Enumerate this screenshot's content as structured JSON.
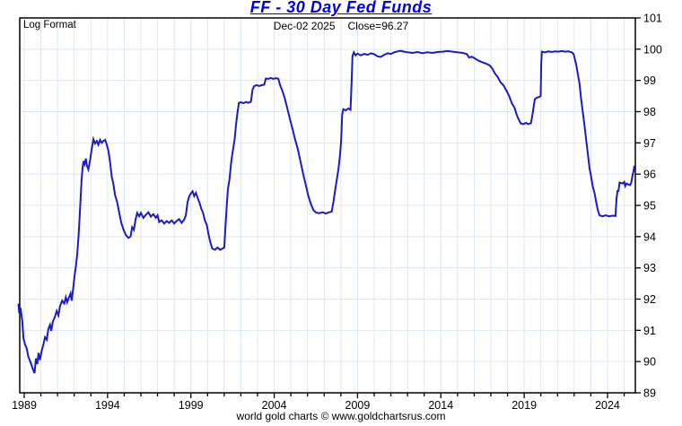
{
  "header": {
    "title": "FF  -  30 Day Fed Funds",
    "subtitle_date": "Dec-02  2025",
    "subtitle_close": "Close=96.27"
  },
  "plot": {
    "format_label": "Log Format"
  },
  "footer": {
    "credit": "world gold charts © www.goldchartsrus.com"
  },
  "colors": {
    "title": "#0000ee",
    "line": "#1a1ac8",
    "grid": "#dce8f5",
    "axis": "#000000",
    "text": "#000000",
    "background": "#ffffff"
  },
  "chart_data": {
    "type": "line",
    "title": "FF - 30 Day Fed Funds",
    "subtitle": "Dec-02 2025  Close=96.27",
    "close": 96.27,
    "close_date": "Dec-02 2025",
    "scale": "Log Format",
    "grid": true,
    "x_axis": {
      "range_years": [
        1988.6,
        2025.7
      ],
      "tick_every_years": 1,
      "labels": [
        1989,
        1994,
        1999,
        2004,
        2009,
        2014,
        2019,
        2024
      ],
      "label_step": 5
    },
    "y_axis": {
      "side": "right",
      "range": [
        89,
        101
      ],
      "ticks": [
        89,
        90,
        91,
        92,
        93,
        94,
        95,
        96,
        97,
        98,
        99,
        100,
        101
      ]
    },
    "series": [
      {
        "name": "30 Day Fed Funds price",
        "points": [
          [
            1988.65,
            91.85
          ],
          [
            1988.7,
            91.55
          ],
          [
            1988.78,
            91.72
          ],
          [
            1988.88,
            91.3
          ],
          [
            1988.95,
            90.75
          ],
          [
            1989.05,
            90.55
          ],
          [
            1989.15,
            90.42
          ],
          [
            1989.25,
            90.15
          ],
          [
            1989.4,
            89.95
          ],
          [
            1989.52,
            89.75
          ],
          [
            1989.62,
            89.63
          ],
          [
            1989.7,
            90.1
          ],
          [
            1989.78,
            89.92
          ],
          [
            1989.86,
            90.28
          ],
          [
            1989.94,
            90.05
          ],
          [
            1990.05,
            90.35
          ],
          [
            1990.15,
            90.55
          ],
          [
            1990.25,
            90.78
          ],
          [
            1990.35,
            90.7
          ],
          [
            1990.45,
            91.05
          ],
          [
            1990.55,
            91.18
          ],
          [
            1990.62,
            90.98
          ],
          [
            1990.72,
            91.28
          ],
          [
            1990.85,
            91.45
          ],
          [
            1990.95,
            91.62
          ],
          [
            1991.05,
            91.48
          ],
          [
            1991.15,
            91.78
          ],
          [
            1991.28,
            91.95
          ],
          [
            1991.4,
            91.86
          ],
          [
            1991.5,
            92.06
          ],
          [
            1991.58,
            91.9
          ],
          [
            1991.68,
            92.05
          ],
          [
            1991.78,
            92.18
          ],
          [
            1991.85,
            91.95
          ],
          [
            1991.95,
            92.4
          ],
          [
            1992.02,
            92.75
          ],
          [
            1992.1,
            93.05
          ],
          [
            1992.18,
            93.45
          ],
          [
            1992.26,
            94.0
          ],
          [
            1992.32,
            94.6
          ],
          [
            1992.38,
            95.2
          ],
          [
            1992.44,
            95.8
          ],
          [
            1992.5,
            96.2
          ],
          [
            1992.56,
            96.42
          ],
          [
            1992.62,
            96.32
          ],
          [
            1992.7,
            96.5
          ],
          [
            1992.76,
            96.28
          ],
          [
            1992.85,
            96.15
          ],
          [
            1992.95,
            96.45
          ],
          [
            1993.05,
            96.8
          ],
          [
            1993.15,
            97.12
          ],
          [
            1993.25,
            96.98
          ],
          [
            1993.35,
            97.06
          ],
          [
            1993.45,
            96.94
          ],
          [
            1993.55,
            97.1
          ],
          [
            1993.65,
            97.0
          ],
          [
            1993.75,
            97.06
          ],
          [
            1993.85,
            97.1
          ],
          [
            1993.95,
            96.95
          ],
          [
            1994.05,
            96.75
          ],
          [
            1994.15,
            96.4
          ],
          [
            1994.25,
            95.92
          ],
          [
            1994.35,
            95.68
          ],
          [
            1994.45,
            95.33
          ],
          [
            1994.58,
            95.1
          ],
          [
            1994.7,
            94.76
          ],
          [
            1994.82,
            94.45
          ],
          [
            1994.95,
            94.23
          ],
          [
            1995.1,
            94.05
          ],
          [
            1995.25,
            93.96
          ],
          [
            1995.38,
            94.0
          ],
          [
            1995.48,
            94.3
          ],
          [
            1995.58,
            94.22
          ],
          [
            1995.68,
            94.55
          ],
          [
            1995.78,
            94.76
          ],
          [
            1995.9,
            94.65
          ],
          [
            1996.0,
            94.76
          ],
          [
            1996.15,
            94.6
          ],
          [
            1996.3,
            94.7
          ],
          [
            1996.45,
            94.78
          ],
          [
            1996.6,
            94.64
          ],
          [
            1996.75,
            94.72
          ],
          [
            1996.9,
            94.6
          ],
          [
            1997.0,
            94.68
          ],
          [
            1997.1,
            94.47
          ],
          [
            1997.25,
            94.52
          ],
          [
            1997.4,
            94.42
          ],
          [
            1997.55,
            94.5
          ],
          [
            1997.7,
            94.44
          ],
          [
            1997.85,
            94.52
          ],
          [
            1998.0,
            94.42
          ],
          [
            1998.15,
            94.5
          ],
          [
            1998.3,
            94.56
          ],
          [
            1998.45,
            94.44
          ],
          [
            1998.6,
            94.55
          ],
          [
            1998.7,
            94.68
          ],
          [
            1998.8,
            95.1
          ],
          [
            1998.9,
            95.3
          ],
          [
            1999.0,
            95.38
          ],
          [
            1999.1,
            95.45
          ],
          [
            1999.2,
            95.3
          ],
          [
            1999.3,
            95.4
          ],
          [
            1999.42,
            95.22
          ],
          [
            1999.52,
            95.08
          ],
          [
            1999.62,
            94.9
          ],
          [
            1999.72,
            94.78
          ],
          [
            1999.85,
            94.5
          ],
          [
            1999.95,
            94.38
          ],
          [
            2000.05,
            94.1
          ],
          [
            2000.15,
            93.85
          ],
          [
            2000.28,
            93.62
          ],
          [
            2000.45,
            93.58
          ],
          [
            2000.6,
            93.65
          ],
          [
            2000.75,
            93.58
          ],
          [
            2000.9,
            93.62
          ],
          [
            2001.0,
            93.65
          ],
          [
            2001.06,
            94.2
          ],
          [
            2001.14,
            94.9
          ],
          [
            2001.22,
            95.5
          ],
          [
            2001.32,
            95.85
          ],
          [
            2001.42,
            96.4
          ],
          [
            2001.52,
            96.75
          ],
          [
            2001.62,
            97.1
          ],
          [
            2001.7,
            97.55
          ],
          [
            2001.78,
            97.9
          ],
          [
            2001.88,
            98.28
          ],
          [
            2002.0,
            98.3
          ],
          [
            2002.15,
            98.27
          ],
          [
            2002.3,
            98.31
          ],
          [
            2002.45,
            98.28
          ],
          [
            2002.6,
            98.32
          ],
          [
            2002.7,
            98.7
          ],
          [
            2002.8,
            98.82
          ],
          [
            2002.95,
            98.85
          ],
          [
            2003.1,
            98.82
          ],
          [
            2003.25,
            98.85
          ],
          [
            2003.4,
            98.86
          ],
          [
            2003.5,
            99.06
          ],
          [
            2003.65,
            99.05
          ],
          [
            2003.8,
            99.08
          ],
          [
            2003.95,
            99.05
          ],
          [
            2004.1,
            99.07
          ],
          [
            2004.25,
            99.05
          ],
          [
            2004.35,
            98.85
          ],
          [
            2004.5,
            98.65
          ],
          [
            2004.65,
            98.4
          ],
          [
            2004.8,
            98.08
          ],
          [
            2004.95,
            97.75
          ],
          [
            2005.1,
            97.45
          ],
          [
            2005.25,
            97.12
          ],
          [
            2005.42,
            96.8
          ],
          [
            2005.58,
            96.4
          ],
          [
            2005.74,
            96.0
          ],
          [
            2005.9,
            95.65
          ],
          [
            2006.05,
            95.3
          ],
          [
            2006.2,
            95.05
          ],
          [
            2006.35,
            94.85
          ],
          [
            2006.5,
            94.77
          ],
          [
            2006.7,
            94.75
          ],
          [
            2006.9,
            94.78
          ],
          [
            2007.1,
            94.74
          ],
          [
            2007.3,
            94.78
          ],
          [
            2007.45,
            94.8
          ],
          [
            2007.55,
            95.1
          ],
          [
            2007.65,
            95.45
          ],
          [
            2007.75,
            95.8
          ],
          [
            2007.85,
            96.15
          ],
          [
            2007.95,
            96.6
          ],
          [
            2008.02,
            97.1
          ],
          [
            2008.08,
            97.9
          ],
          [
            2008.15,
            98.08
          ],
          [
            2008.3,
            98.04
          ],
          [
            2008.45,
            98.1
          ],
          [
            2008.58,
            98.06
          ],
          [
            2008.65,
            99.0
          ],
          [
            2008.7,
            99.78
          ],
          [
            2008.78,
            99.9
          ],
          [
            2008.88,
            99.8
          ],
          [
            2009.0,
            99.86
          ],
          [
            2009.2,
            99.8
          ],
          [
            2009.4,
            99.85
          ],
          [
            2009.6,
            99.82
          ],
          [
            2009.8,
            99.87
          ],
          [
            2010.0,
            99.84
          ],
          [
            2010.2,
            99.77
          ],
          [
            2010.4,
            99.75
          ],
          [
            2010.6,
            99.82
          ],
          [
            2010.8,
            99.87
          ],
          [
            2011.0,
            99.85
          ],
          [
            2011.2,
            99.9
          ],
          [
            2011.4,
            99.93
          ],
          [
            2011.6,
            99.95
          ],
          [
            2011.8,
            99.92
          ],
          [
            2012.0,
            99.9
          ],
          [
            2012.3,
            99.88
          ],
          [
            2012.6,
            99.91
          ],
          [
            2012.9,
            99.87
          ],
          [
            2013.2,
            99.9
          ],
          [
            2013.5,
            99.88
          ],
          [
            2013.8,
            99.91
          ],
          [
            2014.1,
            99.92
          ],
          [
            2014.4,
            99.94
          ],
          [
            2014.7,
            99.92
          ],
          [
            2015.0,
            99.9
          ],
          [
            2015.3,
            99.88
          ],
          [
            2015.55,
            99.85
          ],
          [
            2015.7,
            99.73
          ],
          [
            2015.85,
            99.76
          ],
          [
            2016.0,
            99.72
          ],
          [
            2016.2,
            99.65
          ],
          [
            2016.4,
            99.6
          ],
          [
            2016.6,
            99.56
          ],
          [
            2016.8,
            99.52
          ],
          [
            2016.95,
            99.47
          ],
          [
            2017.1,
            99.37
          ],
          [
            2017.25,
            99.22
          ],
          [
            2017.42,
            99.1
          ],
          [
            2017.58,
            98.94
          ],
          [
            2017.75,
            98.85
          ],
          [
            2017.95,
            98.66
          ],
          [
            2018.1,
            98.5
          ],
          [
            2018.25,
            98.28
          ],
          [
            2018.42,
            98.12
          ],
          [
            2018.55,
            97.9
          ],
          [
            2018.68,
            97.74
          ],
          [
            2018.8,
            97.62
          ],
          [
            2018.95,
            97.6
          ],
          [
            2019.1,
            97.64
          ],
          [
            2019.25,
            97.6
          ],
          [
            2019.4,
            97.63
          ],
          [
            2019.48,
            97.84
          ],
          [
            2019.56,
            98.12
          ],
          [
            2019.64,
            98.4
          ],
          [
            2019.78,
            98.45
          ],
          [
            2019.92,
            98.47
          ],
          [
            2019.99,
            98.5
          ],
          [
            2020.02,
            99.5
          ],
          [
            2020.06,
            99.92
          ],
          [
            2020.25,
            99.9
          ],
          [
            2020.45,
            99.93
          ],
          [
            2020.65,
            99.91
          ],
          [
            2020.85,
            99.93
          ],
          [
            2021.05,
            99.92
          ],
          [
            2021.25,
            99.94
          ],
          [
            2021.45,
            99.92
          ],
          [
            2021.65,
            99.93
          ],
          [
            2021.85,
            99.9
          ],
          [
            2021.97,
            99.84
          ],
          [
            2022.06,
            99.64
          ],
          [
            2022.14,
            99.46
          ],
          [
            2022.22,
            99.2
          ],
          [
            2022.32,
            98.9
          ],
          [
            2022.42,
            98.4
          ],
          [
            2022.52,
            97.98
          ],
          [
            2022.62,
            97.55
          ],
          [
            2022.72,
            97.1
          ],
          [
            2022.82,
            96.64
          ],
          [
            2022.92,
            96.2
          ],
          [
            2023.02,
            95.9
          ],
          [
            2023.12,
            95.6
          ],
          [
            2023.22,
            95.4
          ],
          [
            2023.32,
            95.1
          ],
          [
            2023.42,
            94.85
          ],
          [
            2023.52,
            94.68
          ],
          [
            2023.7,
            94.65
          ],
          [
            2023.9,
            94.68
          ],
          [
            2024.1,
            94.65
          ],
          [
            2024.3,
            94.67
          ],
          [
            2024.48,
            94.66
          ],
          [
            2024.54,
            95.2
          ],
          [
            2024.6,
            95.46
          ],
          [
            2024.66,
            95.46
          ],
          [
            2024.72,
            95.73
          ],
          [
            2024.9,
            95.7
          ],
          [
            2025.0,
            95.75
          ],
          [
            2025.06,
            95.62
          ],
          [
            2025.15,
            95.7
          ],
          [
            2025.25,
            95.67
          ],
          [
            2025.35,
            95.65
          ],
          [
            2025.42,
            95.72
          ],
          [
            2025.5,
            95.95
          ],
          [
            2025.56,
            96.1
          ],
          [
            2025.62,
            96.27
          ]
        ]
      }
    ]
  }
}
